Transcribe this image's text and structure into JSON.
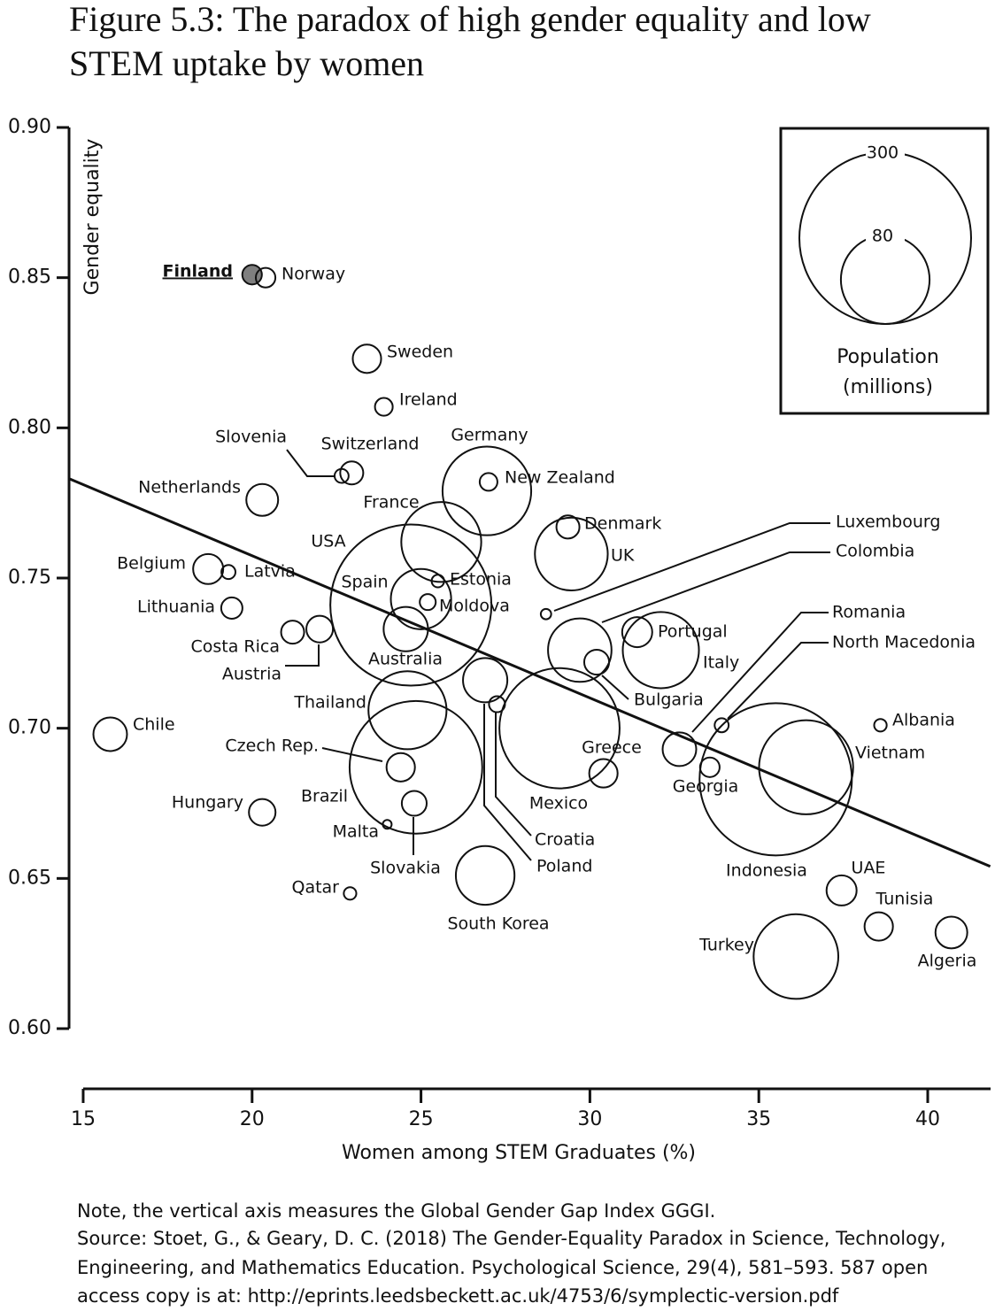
{
  "title_lines": [
    "Figure 5.3: The paradox of high gender equality and low",
    "STEM uptake by women"
  ],
  "chart_data": {
    "type": "bubble",
    "x_label": "Women among STEM Graduates (%)",
    "y_label": "Gender equality",
    "labels": [
      "Finland",
      "Norway",
      "Sweden",
      "Ireland",
      "Slovenia",
      "Switzerland",
      "Germany",
      "New Zealand",
      "Netherlands",
      "France",
      "USA",
      "Spain",
      "Estonia",
      "Moldova",
      "Australia",
      "Denmark",
      "UK",
      "Belgium",
      "Latvia",
      "Lithuania",
      "Costa Rica",
      "Austria",
      "Luxembourg",
      "Colombia",
      "Portugal",
      "Italy",
      "Bulgaria",
      "Thailand",
      "Brazil",
      "Czech Rep.",
      "Slovakia",
      "Malta",
      "Hungary",
      "Chile",
      "Mexico",
      "Croatia",
      "Poland",
      "Greece",
      "Georgia",
      "Romania",
      "North Macedonia",
      "Indonesia",
      "Vietnam",
      "Albania",
      "UAE",
      "Tunisia",
      "Algeria",
      "Turkey",
      "South Korea",
      "Qatar"
    ],
    "x": [
      20.0,
      20.4,
      23.4,
      23.9,
      22.65,
      22.95,
      26.95,
      27.0,
      20.3,
      25.6,
      24.7,
      25.0,
      25.5,
      25.2,
      24.55,
      29.35,
      29.45,
      18.7,
      19.3,
      19.4,
      21.2,
      22.0,
      28.7,
      29.7,
      31.4,
      32.1,
      30.2,
      24.6,
      24.85,
      24.4,
      24.8,
      24.0,
      20.3,
      15.8,
      29.1,
      27.25,
      26.9,
      30.4,
      33.55,
      32.65,
      33.9,
      35.5,
      36.4,
      38.6,
      37.45,
      38.55,
      40.7,
      36.1,
      26.9,
      22.9
    ],
    "values": [
      0.851,
      0.85,
      0.823,
      0.807,
      0.784,
      0.785,
      0.779,
      0.782,
      0.776,
      0.762,
      0.741,
      0.743,
      0.749,
      0.742,
      0.733,
      0.767,
      0.758,
      0.753,
      0.752,
      0.74,
      0.732,
      0.733,
      0.738,
      0.726,
      0.732,
      0.726,
      0.722,
      0.706,
      0.687,
      0.687,
      0.675,
      0.668,
      0.672,
      0.698,
      0.7,
      0.708,
      0.716,
      0.685,
      0.687,
      0.693,
      0.701,
      0.683,
      0.687,
      0.701,
      0.646,
      0.634,
      0.632,
      0.624,
      0.651,
      0.645
    ],
    "sizes": [
      3.9,
      3.9,
      8.2,
      3.2,
      2.0,
      5.4,
      80,
      3.2,
      10.3,
      65,
      264,
      37,
      1.6,
      2.6,
      20,
      5.4,
      54,
      9.2,
      2.0,
      4.6,
      5.4,
      7.2,
      1.1,
      41,
      9.2,
      59,
      6.3,
      62,
      179,
      8.2,
      6.3,
      0.8,
      7.2,
      11.5,
      147,
      2.6,
      20,
      8.2,
      3.9,
      11.5,
      2.0,
      236,
      90,
      1.6,
      9.2,
      8.2,
      10.3,
      73,
      35,
      1.6
    ],
    "colors": [
      "#7f7f7f",
      "#ffffff",
      "#ffffff",
      "#ffffff",
      "#ffffff",
      "#ffffff",
      "#ffffff",
      "#ffffff",
      "#ffffff",
      "#ffffff",
      "#ffffff",
      "#ffffff",
      "#ffffff",
      "#ffffff",
      "#ffffff",
      "#ffffff",
      "#ffffff",
      "#ffffff",
      "#ffffff",
      "#ffffff",
      "#ffffff",
      "#ffffff",
      "#ffffff",
      "#ffffff",
      "#ffffff",
      "#ffffff",
      "#ffffff",
      "#ffffff",
      "#ffffff",
      "#ffffff",
      "#ffffff",
      "#ffffff",
      "#ffffff",
      "#ffffff",
      "#ffffff",
      "#ffffff",
      "#ffffff",
      "#ffffff",
      "#ffffff",
      "#ffffff",
      "#ffffff",
      "#ffffff",
      "#ffffff",
      "#ffffff",
      "#ffffff",
      "#ffffff",
      "#ffffff",
      "#ffffff",
      "#ffffff",
      "#ffffff"
    ],
    "trendline": {
      "x": [
        14.6,
        41.85
      ],
      "y": [
        0.783,
        0.654
      ]
    },
    "xlim": [
      14.6,
      41.85
    ],
    "xticks": [
      15,
      20,
      25,
      30,
      35,
      40
    ],
    "ylim": [
      0.6,
      0.9
    ],
    "yticks": [
      {
        "value": 0.9,
        "label": "0.90"
      },
      0.85,
      {
        "value": 0.8,
        "label": "0.80"
      },
      0.75,
      {
        "value": 0.7,
        "label": "0.70"
      },
      0.65,
      {
        "value": 0.6,
        "label": "0.60"
      }
    ],
    "size_legend": {
      "sizes": [
        300,
        80
      ],
      "title_lines": [
        "Population",
        "(millions)"
      ]
    }
  },
  "notes": [
    "Note, the vertical axis measures the Global Gender Gap Index GGGI.",
    "Source: Stoet, G., & Geary, D. C. (2018) The Gender-Equality Paradox in Science, Technology,",
    "Engineering, and Mathematics Education. Psychological Science, 29(4), 581–593. 587 open",
    "access copy is at: http://eprints.leedsbeckett.ac.uk/4753/6/symplectic-version.pdf"
  ]
}
